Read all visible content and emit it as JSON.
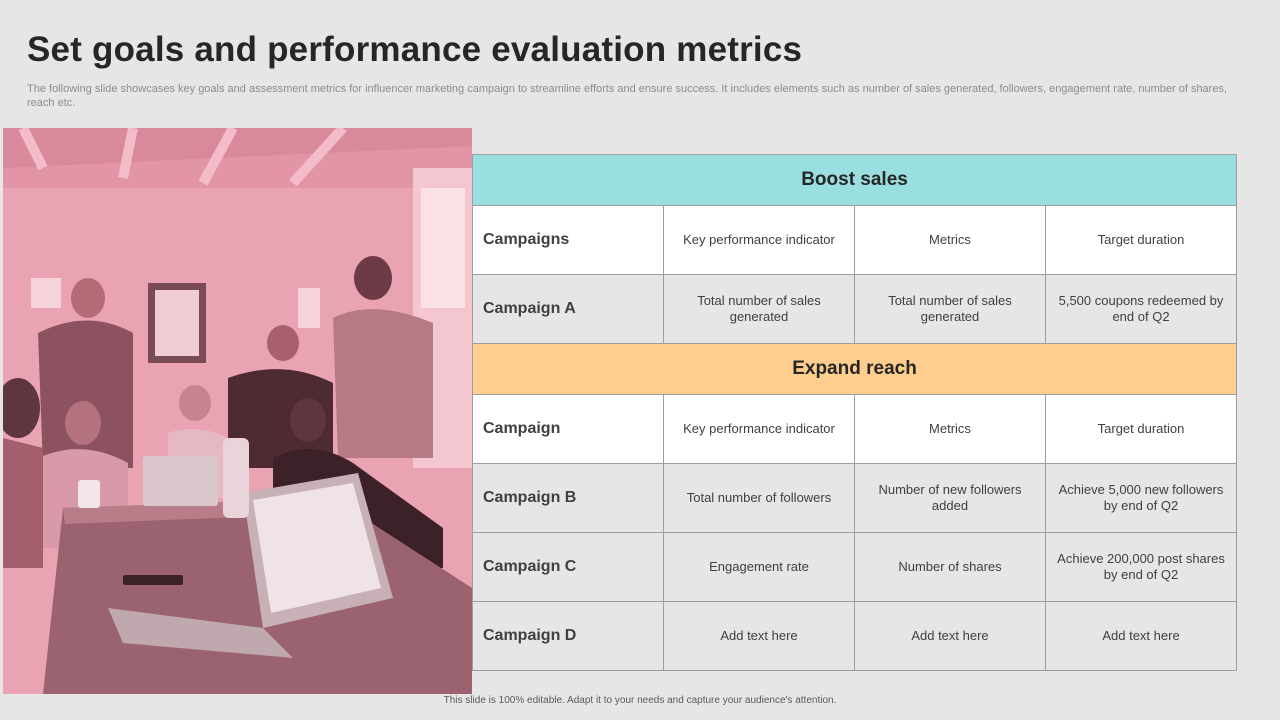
{
  "slide": {
    "title": "Set goals and performance evaluation metrics",
    "subtitle": "The following slide showcases key goals and assessment metrics for influencer marketing campaign to streamline efforts and ensure success. It includes elements such as number of sales generated, followers, engagement rate, number of shares, reach etc.",
    "footer": "This slide is 100% editable.  Adapt it to your needs and capture your audience's attention."
  },
  "colors": {
    "background": "#e6e6e6",
    "boost_header": "#9adfe0",
    "reach_header": "#fdce8d",
    "photo_tint": "#e9a1b0"
  },
  "table": {
    "boost": {
      "title": "Boost sales",
      "header": [
        "Campaigns",
        "Key performance  indicator",
        "Metrics",
        "Target duration"
      ],
      "rows": [
        [
          "Campaign A",
          "Total number of sales generated",
          "Total number of sales generated",
          "5,500 coupons redeemed  by end of Q2"
        ]
      ]
    },
    "reach": {
      "title": "Expand reach",
      "header": [
        "Campaign",
        "Key performance  indicator",
        "Metrics",
        "Target duration"
      ],
      "rows": [
        [
          "Campaign B",
          "Total number  of followers",
          "Number  of new followers added",
          "Achieve  5,000 new followers by end of Q2"
        ],
        [
          "Campaign C",
          "Engagement  rate",
          "Number  of shares",
          "Achieve 200,000 post shares by end of Q2"
        ],
        [
          "Campaign D",
          "Add text here",
          "Add text here",
          "Add text here"
        ]
      ]
    }
  }
}
